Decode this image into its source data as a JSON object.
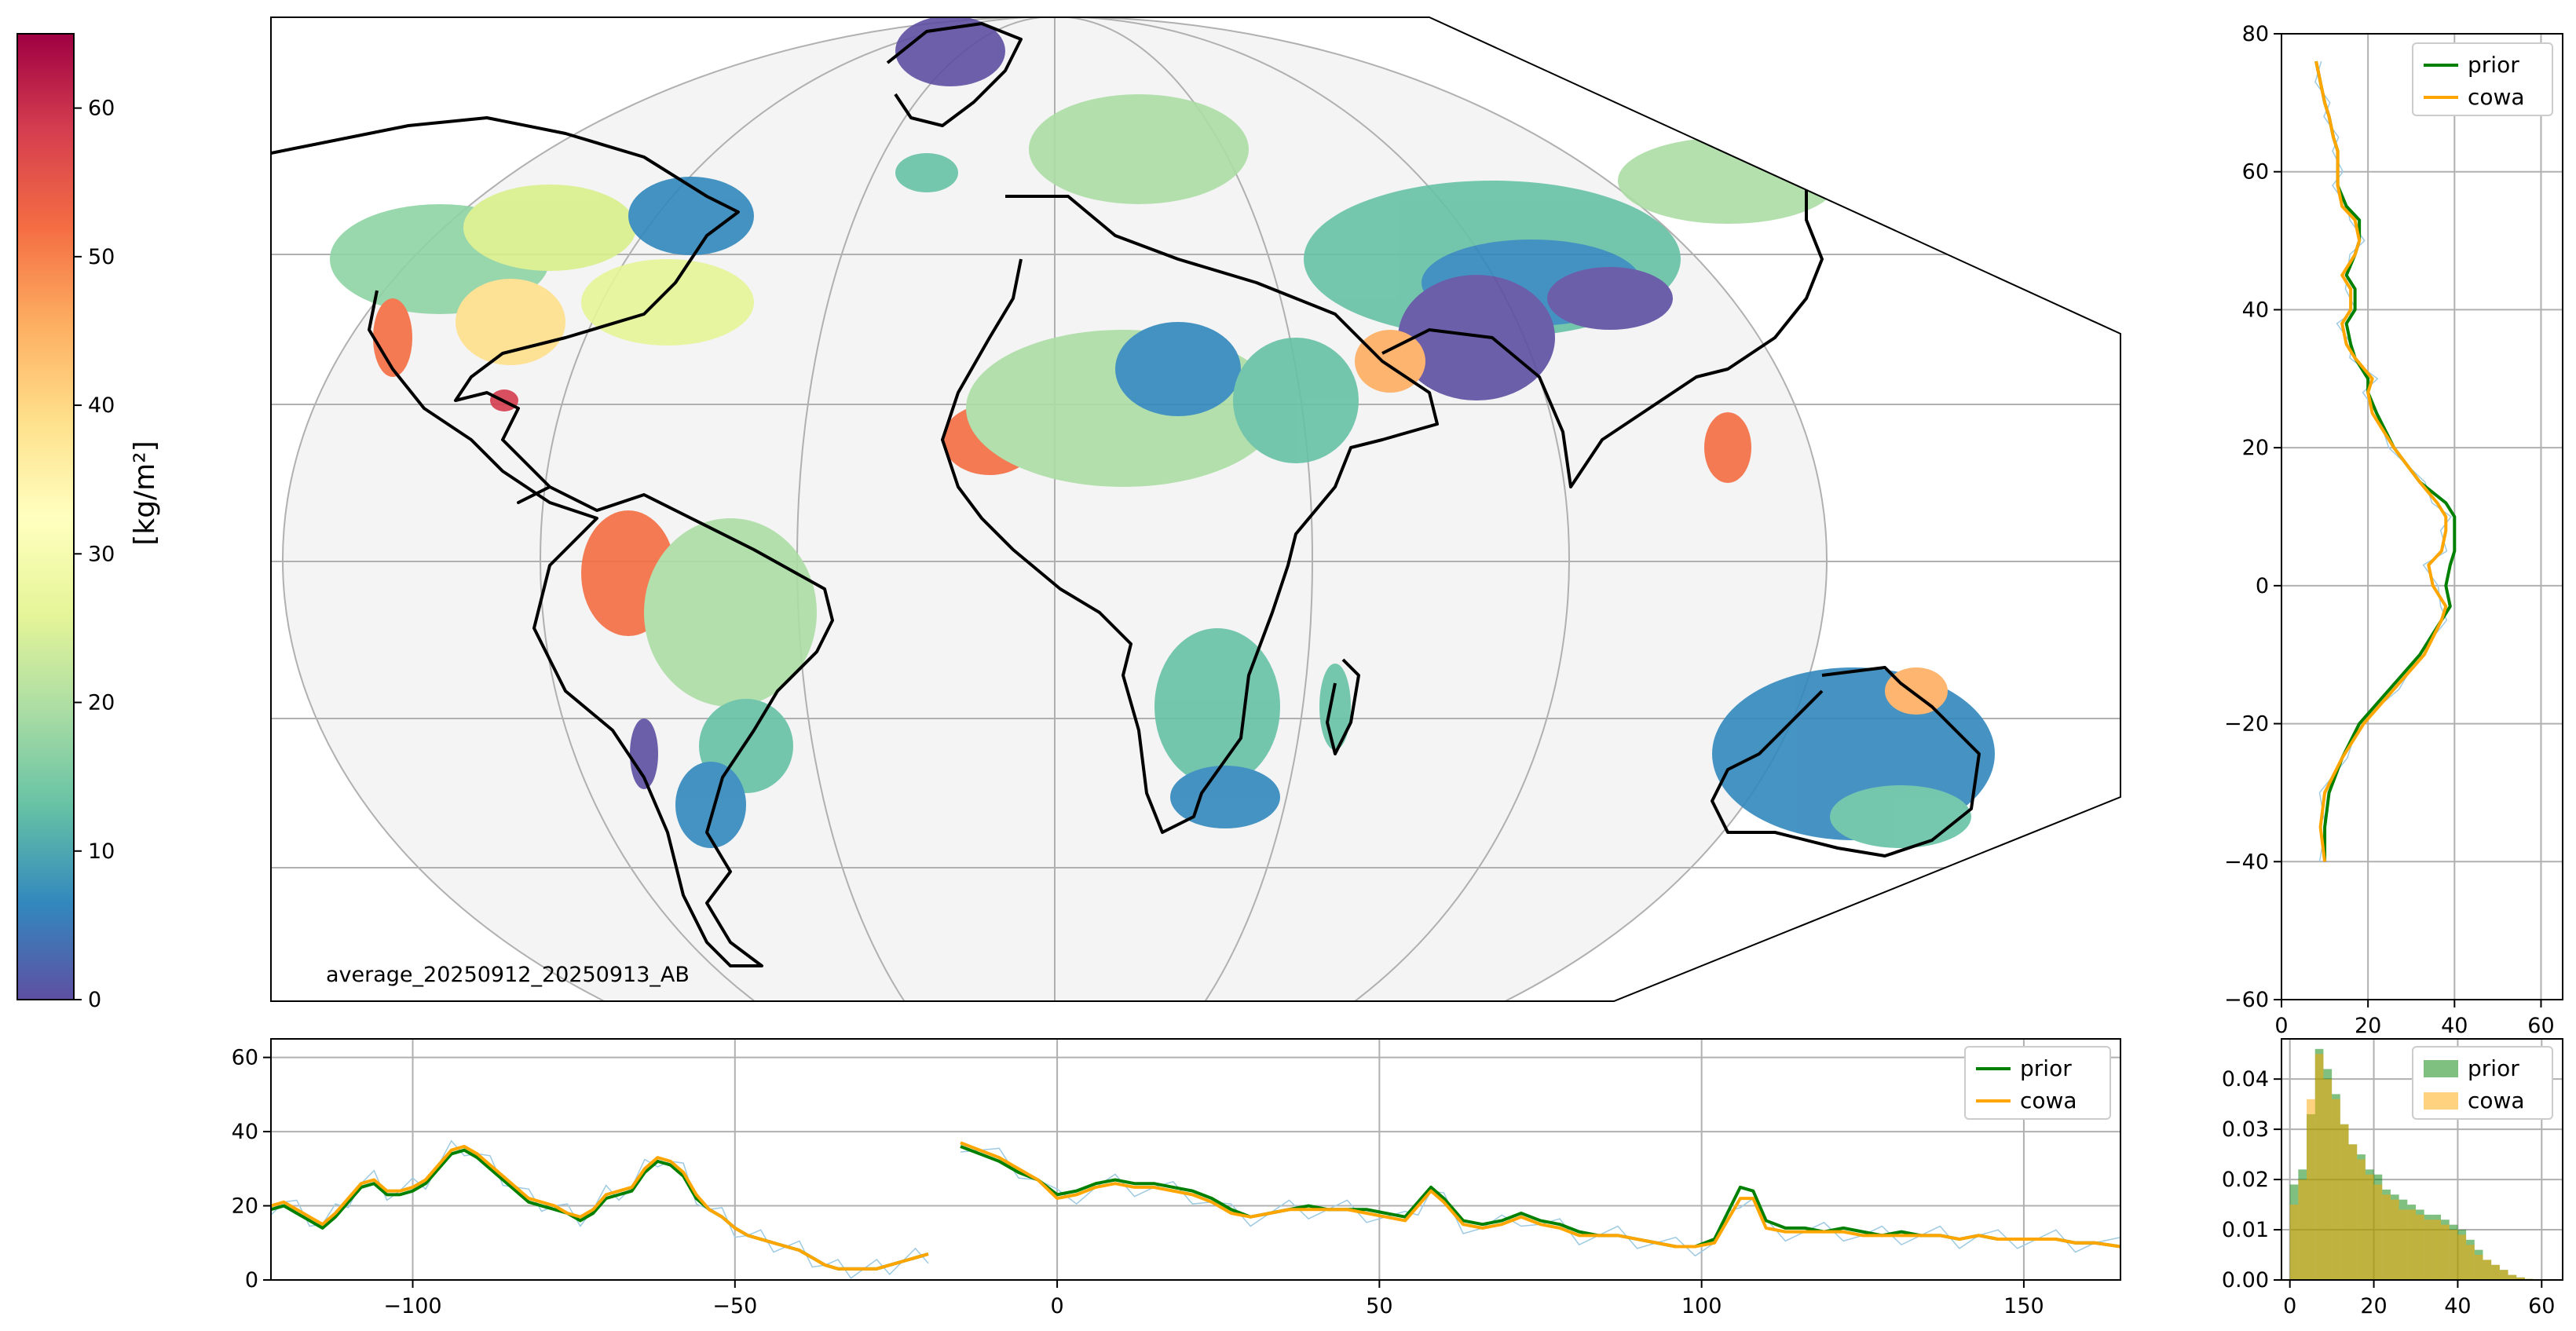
{
  "colors": {
    "prior": "#008000",
    "cowa": "#ffa500",
    "thin_line": "#9ecae1",
    "grid": "#b0b0b0",
    "map_background": "#f4f4f4"
  },
  "colormap": "Spectral_r",
  "colorbar": {
    "label": "[kg/m²]",
    "ticks": [
      "0",
      "10",
      "20",
      "30",
      "40",
      "50",
      "60"
    ],
    "min": 0,
    "max": 65
  },
  "map": {
    "projection": "Mollweide",
    "annotation": "average_20250912_20250913_AB",
    "icons": [
      "coastline-outline",
      "graticule-grid"
    ]
  },
  "chart_data": [
    {
      "id": "lat_profile",
      "type": "line",
      "orientation": "vertical",
      "xlim": [
        0,
        65
      ],
      "ylim": [
        -60,
        80
      ],
      "xticks": [
        "0",
        "20",
        "40",
        "60"
      ],
      "yticks": [
        "−60",
        "−40",
        "−20",
        "0",
        "20",
        "40",
        "60",
        "80"
      ],
      "grid": true,
      "legend_position": "top-right",
      "legend": [
        "prior",
        "cowa"
      ],
      "y": [
        -40,
        -35,
        -30,
        -25,
        -20,
        -15,
        -10,
        -5,
        -3,
        0,
        3,
        5,
        8,
        10,
        12,
        15,
        20,
        25,
        28,
        30,
        33,
        35,
        38,
        40,
        43,
        45,
        48,
        50,
        53,
        55,
        58,
        60,
        63,
        65,
        68,
        70,
        73,
        76
      ],
      "series": [
        {
          "name": "prior",
          "values": [
            10,
            10,
            11,
            14,
            18,
            25,
            32,
            37,
            39,
            38,
            39,
            40,
            40,
            40,
            38,
            32,
            26,
            22,
            20,
            20,
            17,
            16,
            15,
            17,
            17,
            15,
            17,
            18,
            18,
            15,
            13,
            13,
            13,
            12,
            11,
            10,
            9,
            8
          ]
        },
        {
          "name": "cowa",
          "values": [
            10,
            9,
            10,
            14,
            19,
            26,
            33,
            37,
            38,
            35,
            34,
            37,
            38,
            38,
            36,
            32,
            26,
            21,
            20,
            21,
            17,
            15,
            14,
            16,
            16,
            14,
            17,
            18,
            17,
            14,
            13,
            13,
            13,
            12,
            11,
            10,
            9,
            8
          ]
        }
      ]
    },
    {
      "id": "lon_profile",
      "type": "line",
      "xlim": [
        -122,
        165
      ],
      "ylim": [
        0,
        65
      ],
      "xticks": [
        "−100",
        "−50",
        "0",
        "50",
        "100",
        "150"
      ],
      "yticks": [
        "0",
        "20",
        "40",
        "60"
      ],
      "grid": true,
      "legend_position": "top-right",
      "legend": [
        "prior",
        "cowa"
      ],
      "segments": [
        {
          "x": [
            -122,
            -120,
            -118,
            -116,
            -114,
            -112,
            -110,
            -108,
            -106,
            -104,
            -102,
            -100,
            -98,
            -96,
            -94,
            -92,
            -90,
            -88,
            -86,
            -84,
            -82,
            -80,
            -78,
            -76,
            -74,
            -72,
            -70,
            -68,
            -66,
            -64,
            -62,
            -60,
            -58,
            -56,
            -54,
            -52,
            -50,
            -48,
            -46,
            -44,
            -42,
            -40,
            -38,
            -36,
            -34,
            -32,
            -30,
            -28,
            -26,
            -24,
            -22,
            -20
          ],
          "series": [
            {
              "name": "prior",
              "values": [
                19,
                20,
                18,
                16,
                14,
                17,
                21,
                25,
                26,
                23,
                23,
                24,
                26,
                30,
                34,
                35,
                33,
                30,
                27,
                24,
                21,
                20,
                19,
                18,
                16,
                18,
                22,
                23,
                24,
                29,
                32,
                31,
                28,
                22,
                19,
                17,
                14,
                12,
                11,
                10,
                9,
                8,
                6,
                4,
                3,
                3,
                3,
                3,
                4,
                5,
                6,
                7
              ]
            },
            {
              "name": "cowa",
              "values": [
                20,
                21,
                19,
                17,
                15,
                18,
                22,
                26,
                27,
                24,
                24,
                25,
                27,
                31,
                35,
                36,
                34,
                31,
                28,
                25,
                22,
                21,
                20,
                18,
                17,
                19,
                23,
                24,
                25,
                30,
                33,
                32,
                29,
                23,
                19,
                17,
                14,
                12,
                11,
                10,
                9,
                8,
                6,
                4,
                3,
                3,
                3,
                3,
                4,
                5,
                6,
                7
              ]
            }
          ]
        },
        {
          "x": [
            -15,
            -12,
            -9,
            -6,
            -3,
            0,
            3,
            6,
            9,
            12,
            15,
            18,
            21,
            24,
            27,
            30,
            33,
            36,
            39,
            42,
            45,
            48,
            51,
            54,
            56,
            58,
            60,
            63,
            66,
            69,
            72,
            75,
            78,
            81,
            84,
            87,
            90,
            93,
            96,
            99,
            102,
            104,
            106,
            108,
            110,
            113,
            116,
            119,
            122,
            125,
            128,
            131,
            134,
            137,
            140,
            143,
            146,
            149,
            152,
            155,
            158,
            161,
            165
          ],
          "series": [
            {
              "name": "prior",
              "values": [
                36,
                34,
                32,
                29,
                27,
                23,
                24,
                26,
                27,
                26,
                26,
                25,
                24,
                22,
                19,
                17,
                18,
                19,
                20,
                19,
                19,
                19,
                18,
                17,
                21,
                25,
                22,
                16,
                15,
                16,
                18,
                16,
                15,
                13,
                12,
                12,
                11,
                10,
                9,
                9,
                11,
                18,
                25,
                24,
                16,
                14,
                14,
                13,
                14,
                13,
                12,
                13,
                12,
                12,
                11,
                12,
                11,
                11,
                11,
                11,
                10,
                10,
                9
              ]
            },
            {
              "name": "cowa",
              "values": [
                37,
                35,
                33,
                30,
                27,
                22,
                23,
                25,
                26,
                25,
                25,
                24,
                23,
                21,
                18,
                17,
                18,
                19,
                19,
                19,
                19,
                18,
                17,
                16,
                20,
                24,
                21,
                15,
                14,
                15,
                17,
                15,
                14,
                12,
                12,
                12,
                11,
                10,
                9,
                9,
                10,
                16,
                22,
                22,
                14,
                13,
                13,
                13,
                13,
                12,
                12,
                12,
                12,
                12,
                11,
                12,
                11,
                11,
                11,
                11,
                10,
                10,
                9
              ]
            }
          ]
        }
      ]
    },
    {
      "id": "histogram",
      "type": "bar",
      "xlim": [
        -2,
        65
      ],
      "ylim": [
        0,
        0.048
      ],
      "xticks": [
        "0",
        "20",
        "40",
        "60"
      ],
      "yticks": [
        "0.00",
        "0.01",
        "0.02",
        "0.03",
        "0.04"
      ],
      "grid": true,
      "legend_position": "top-right",
      "legend": [
        "prior",
        "cowa"
      ],
      "bin_width": 2,
      "bin_start": 0,
      "series": [
        {
          "name": "prior",
          "values": [
            0.019,
            0.022,
            0.033,
            0.046,
            0.042,
            0.037,
            0.031,
            0.027,
            0.025,
            0.022,
            0.021,
            0.018,
            0.017,
            0.016,
            0.015,
            0.014,
            0.013,
            0.013,
            0.012,
            0.011,
            0.01,
            0.008,
            0.006,
            0.004,
            0.003,
            0.002,
            0.001,
            0.0005,
            0.0002
          ]
        },
        {
          "name": "cowa",
          "values": [
            0.015,
            0.02,
            0.036,
            0.045,
            0.04,
            0.036,
            0.031,
            0.027,
            0.024,
            0.021,
            0.019,
            0.017,
            0.016,
            0.014,
            0.014,
            0.013,
            0.012,
            0.012,
            0.011,
            0.01,
            0.009,
            0.007,
            0.005,
            0.004,
            0.003,
            0.002,
            0.001,
            0.0005,
            0.0002
          ]
        }
      ]
    }
  ]
}
